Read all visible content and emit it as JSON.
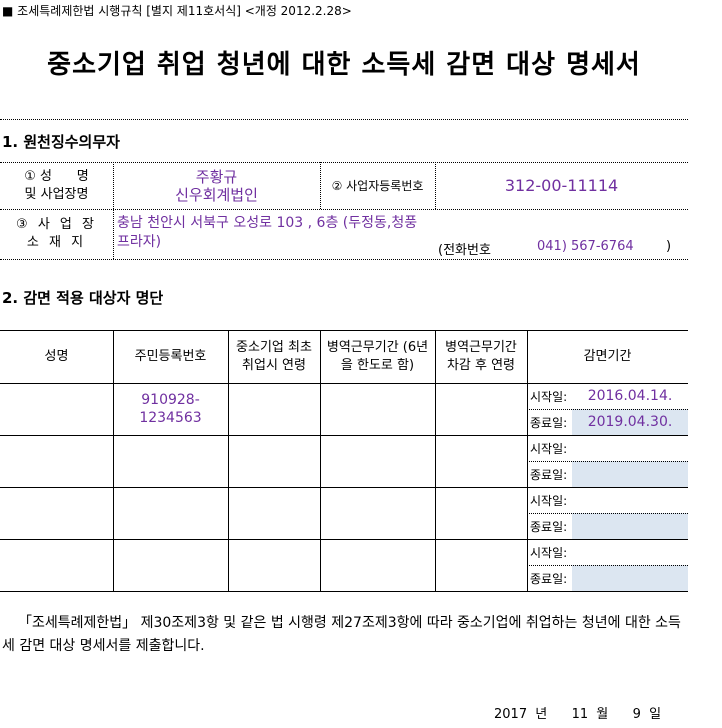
{
  "header_note": "■ 조세특례제한법 시행규칙 [별지 제11호서식] <개정 2012.2.28>",
  "title": "중소기업 취업 청년에 대한 소득세 감면 대상 명세서",
  "section1": {
    "heading": "1. 원천징수의무자",
    "name_label_1": "① 성      명",
    "name_label_2": "및 사업장명",
    "name_value_1": "주황규",
    "name_value_2": "신우회계법인",
    "bizno_label": "② 사업자등록번호",
    "bizno_value": "312-00-11114",
    "addr_label_1": "③ 사 업 장",
    "addr_label_2": "소 재 지",
    "addr_value": "충남 천안시 서북구 오성로 103 , 6층 (두정동,청풍프라자)",
    "phone_label": "(전화번호",
    "phone_value": "041) 567-6764",
    "phone_close": ")"
  },
  "section2": {
    "heading": "2. 감면 적용 대상자 명단",
    "columns": [
      "성명",
      "주민등록번호",
      "중소기업 최초 취업시 연령",
      "병역근무기간 (6년을 한도로 함)",
      "병역근무기간 차감 후 연령",
      "감면기간"
    ],
    "start_label": "시작일:",
    "end_label": "종료일:",
    "rows": [
      {
        "name": "",
        "rrn": "910928-1234563",
        "age": "",
        "military": "",
        "age_after": "",
        "start": "2016.04.14.",
        "end": "2019.04.30."
      },
      {
        "name": "",
        "rrn": "",
        "age": "",
        "military": "",
        "age_after": "",
        "start": "",
        "end": ""
      },
      {
        "name": "",
        "rrn": "",
        "age": "",
        "military": "",
        "age_after": "",
        "start": "",
        "end": ""
      },
      {
        "name": "",
        "rrn": "",
        "age": "",
        "military": "",
        "age_after": "",
        "start": "",
        "end": ""
      }
    ]
  },
  "statement": "「조세특례제한법」 제30조제3항 및 같은 법 시행령 제27조제3항에 따라 중소기업에 취업하는 청년에 대한 소득세 감면 대상 명세서를 제출합니다.",
  "date": {
    "year": "2017",
    "year_unit": "년",
    "month": "11",
    "month_unit": "월",
    "day": "9",
    "day_unit": "일"
  }
}
